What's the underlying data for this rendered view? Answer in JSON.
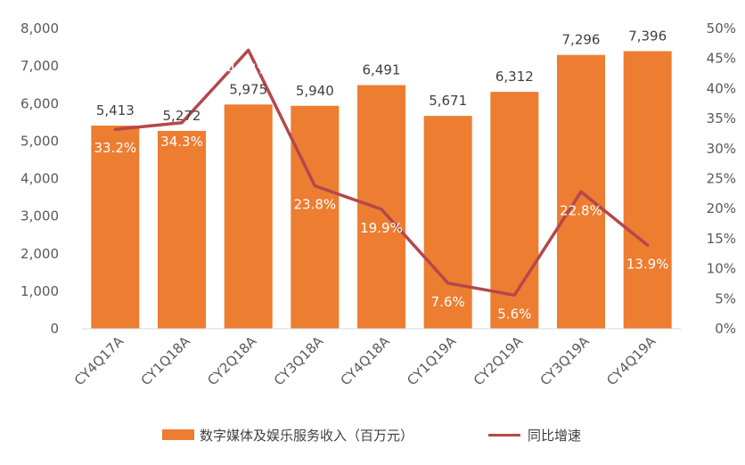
{
  "chart_data": {
    "type": "bar",
    "categories": [
      "CY4Q17A",
      "CY1Q18A",
      "CY2Q18A",
      "CY3Q18A",
      "CY4Q18A",
      "CY1Q19A",
      "CY2Q19A",
      "CY3Q19A",
      "CY4Q19A"
    ],
    "series": [
      {
        "name": "数字媒体及娱乐服务收入（百万元）",
        "kind": "bar",
        "axis": "left",
        "values": [
          5413,
          5272,
          5975,
          5940,
          6491,
          5671,
          6312,
          7296,
          7396
        ],
        "labels": [
          "5,413",
          "5,272",
          "5,975",
          "5,940",
          "6,491",
          "5,671",
          "6,312",
          "7,296",
          "7,396"
        ],
        "color": "#ED7D31"
      },
      {
        "name": "同比增速",
        "kind": "line",
        "axis": "right",
        "values": [
          33.2,
          34.3,
          46.4,
          23.8,
          19.9,
          7.6,
          5.6,
          22.8,
          13.9
        ],
        "labels": [
          "33.2%",
          "34.3%",
          "46.4%",
          "23.8%",
          "19.9%",
          "7.6%",
          "5.6%",
          "22.8%",
          "13.9%"
        ],
        "color": "#B5474B"
      }
    ],
    "y_left": {
      "range": [
        0,
        8000
      ],
      "ticks": [
        0,
        1000,
        2000,
        3000,
        4000,
        5000,
        6000,
        7000,
        8000
      ],
      "tick_labels": [
        "0",
        "1,000",
        "2,000",
        "3,000",
        "4,000",
        "5,000",
        "6,000",
        "7,000",
        "8,000"
      ]
    },
    "y_right": {
      "range": [
        0,
        50
      ],
      "ticks": [
        0,
        5,
        10,
        15,
        20,
        25,
        30,
        35,
        40,
        45,
        50
      ],
      "tick_labels": [
        "0%",
        "5%",
        "10%",
        "15%",
        "20%",
        "25%",
        "30%",
        "35%",
        "40%",
        "45%",
        "50%"
      ]
    },
    "grid": false,
    "legend_position": "bottom"
  }
}
